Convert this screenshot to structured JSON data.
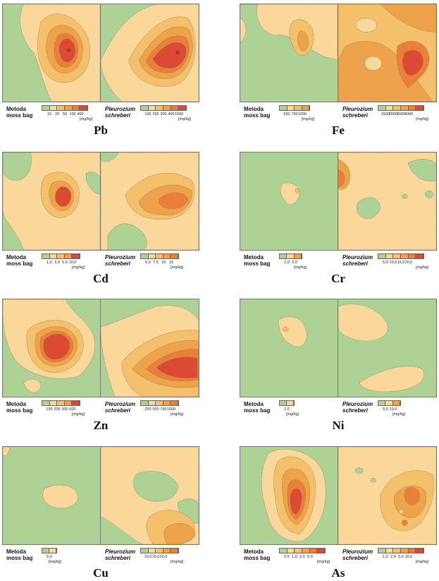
{
  "colors": {
    "c1": "#aed295",
    "c2": "#fad79a",
    "c3": "#f4c06c",
    "c4": "#eea24c",
    "c5": "#e9803a",
    "c6": "#dc4a33",
    "c7": "#b8342a",
    "border": "#777777"
  },
  "panels": [
    {
      "element": "Pb",
      "left_legend": {
        "title": [
          "Metoda",
          "moss bag"
        ],
        "ticks": [
          "10",
          "20",
          "50",
          "100",
          "400"
        ],
        "unit": "[mg/kg]"
      },
      "right_legend": {
        "title": [
          "Pleurozium",
          "schreberi"
        ],
        "ticks": [
          "100",
          "200",
          "300",
          "400",
          "1000"
        ],
        "unit": "[mg/kg]"
      }
    },
    {
      "element": "Fe",
      "left_legend": {
        "title": [
          "Metoda",
          "moss bag"
        ],
        "ticks": [
          "500",
          "750",
          "1000"
        ],
        "unit": "[mg/kg]"
      },
      "right_legend": {
        "title": [
          "Pleurozium",
          "schreberi"
        ],
        "ticks": [
          "1500",
          "2000",
          "3000",
          "4000"
        ],
        "unit": "[mg/kg]"
      }
    },
    {
      "element": "Cd",
      "left_legend": {
        "title": [
          "Metoda",
          "moss bag"
        ],
        "ticks": [
          "1,0",
          "3,0",
          "5,0",
          "10,0"
        ],
        "unit": "[mg/kg]"
      },
      "right_legend": {
        "title": [
          "Pleurozium",
          "schreberi"
        ],
        "ticks": [
          "5,0",
          "7,5",
          "10",
          "15"
        ],
        "unit": "[mg/kg]"
      }
    },
    {
      "element": "Cr",
      "left_legend": {
        "title": [
          "Metoda",
          "moss bag"
        ],
        "ticks": [
          "2,0",
          "3,0"
        ],
        "unit": "[mg/kg]"
      },
      "right_legend": {
        "title": [
          "Pleurozium",
          "schreberi"
        ],
        "ticks": [
          "5,0",
          "10,0",
          "15,0",
          "20,0"
        ],
        "unit": "[mg/kg]"
      }
    },
    {
      "element": "Zn",
      "left_legend": {
        "title": [
          "Metoda",
          "moss bag"
        ],
        "ticks": [
          "100",
          "200",
          "300",
          "600"
        ],
        "unit": "[mg/kg]"
      },
      "right_legend": {
        "title": [
          "Pleurozium",
          "schreberi"
        ],
        "ticks": [
          "250",
          "500",
          "750",
          "1000"
        ],
        "unit": "[mg/kg]"
      }
    },
    {
      "element": "Ni",
      "left_legend": {
        "title": [
          "Metoda",
          "moss bag"
        ],
        "ticks": [
          "2,0"
        ],
        "unit": "[mg/kg]"
      },
      "right_legend": {
        "title": [
          "Pleurozium",
          "schreberi"
        ],
        "ticks": [
          "5,0",
          "10,0"
        ],
        "unit": "[mg/kg]"
      }
    },
    {
      "element": "Cu",
      "left_legend": {
        "title": [
          "Metoda",
          "moss bag"
        ],
        "ticks": [
          "5,0"
        ],
        "unit": "[mg/kg]"
      },
      "right_legend": {
        "title": [
          "Pleurozium",
          "schreberi"
        ],
        "ticks": [
          "10,0",
          "15,0",
          "20,0"
        ],
        "unit": "[mg/kg]"
      }
    },
    {
      "element": "As",
      "left_legend": {
        "title": [
          "Metoda",
          "moss bag"
        ],
        "ticks": [
          "0,5",
          "1,0",
          "2,0",
          "5,0"
        ],
        "unit": "[mg/kg]"
      },
      "right_legend": {
        "title": [
          "Pleurozium",
          "schreberi"
        ],
        "ticks": [
          "1,0",
          "2,0",
          "5,0",
          "10,0"
        ],
        "unit": "[mg/kg]"
      }
    }
  ]
}
